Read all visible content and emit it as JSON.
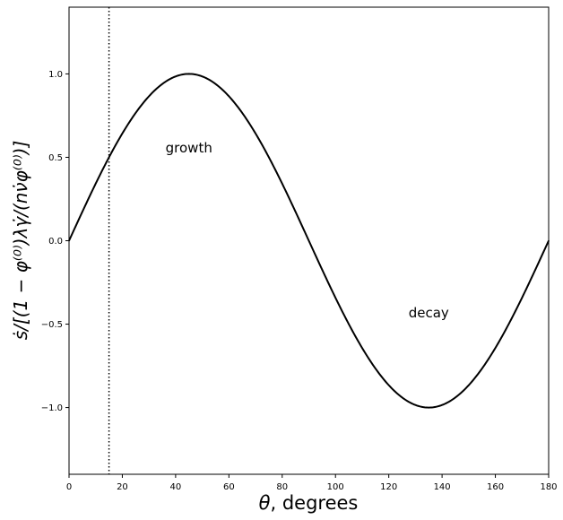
{
  "chart_data": {
    "type": "line",
    "xlabel_math": "θ",
    "xlabel_text": ", degrees",
    "ylabel": "ṡ/[(1 − φ⁽⁰⁾)λγ̇/(nν̇φ⁽⁰⁾)]",
    "xlim": [
      0,
      180
    ],
    "ylim": [
      -1.4,
      1.4
    ],
    "xticks": [
      0,
      20,
      40,
      60,
      80,
      100,
      120,
      140,
      160,
      180
    ],
    "yticks": [
      -1.0,
      -0.5,
      0.0,
      0.5,
      1.0
    ],
    "ytick_labels": [
      "−1.0",
      "−0.5",
      "0.0",
      "0.5",
      "1.0"
    ],
    "series": [
      {
        "function": "sin(2θ)",
        "x": [
          0,
          7.5,
          15,
          22.5,
          30,
          37.5,
          45,
          52.5,
          60,
          67.5,
          75,
          82.5,
          90,
          97.5,
          105,
          112.5,
          120,
          127.5,
          135,
          142.5,
          150,
          157.5,
          165,
          172.5,
          180
        ],
        "values": [
          0,
          0.259,
          0.5,
          0.707,
          0.866,
          0.966,
          1.0,
          0.966,
          0.866,
          0.707,
          0.5,
          0.259,
          0,
          -0.259,
          -0.5,
          -0.707,
          -0.866,
          -0.966,
          -1.0,
          -0.966,
          -0.866,
          -0.707,
          -0.5,
          -0.259,
          0
        ],
        "color": "#000000"
      }
    ],
    "vline": {
      "x": 15,
      "style": "dotted",
      "color": "#000000"
    },
    "annotations": [
      {
        "text": "growth",
        "x": 45,
        "y": 0.53
      },
      {
        "text": "decay",
        "x": 135,
        "y": -0.46
      }
    ],
    "grid": false
  }
}
